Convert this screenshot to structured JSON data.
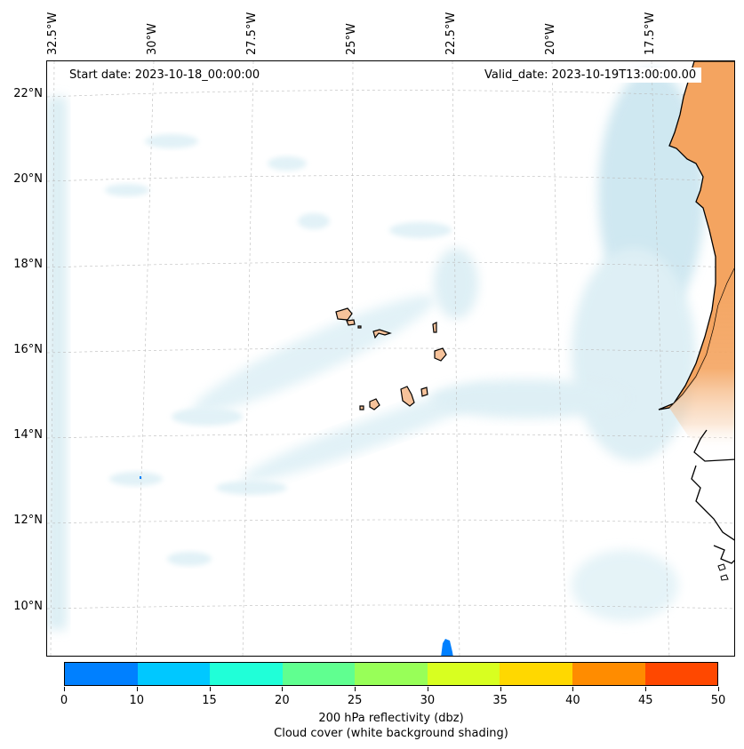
{
  "start_date": "Start date: 2023-10-18_00:00:00",
  "valid_date": "Valid_date: 2023-10-19T13:00:00.00",
  "lon_labels": [
    "32.5°W",
    "30°W",
    "27.5°W",
    "25°W",
    "22.5°W",
    "20°W",
    "17.5°W"
  ],
  "lat_labels": [
    "22°N",
    "20°N",
    "18°N",
    "16°N",
    "14°N",
    "12°N",
    "10°N"
  ],
  "colorbar": {
    "ticks": [
      "0",
      "10",
      "15",
      "20",
      "25",
      "30",
      "35",
      "40",
      "45",
      "50"
    ],
    "colors": [
      "#0080ff",
      "#00c8ff",
      "#20ffd8",
      "#60ff90",
      "#98ff58",
      "#d8ff20",
      "#ffd800",
      "#ff8c00",
      "#ff4800"
    ],
    "label": "200 hPa reflectivity (dbz)",
    "sublabel": "Cloud cover (white background shading)"
  },
  "colors": {
    "land_africa": "#f4a460",
    "land_islands": "#f6c29a",
    "cloud": "#cfe8f0"
  }
}
